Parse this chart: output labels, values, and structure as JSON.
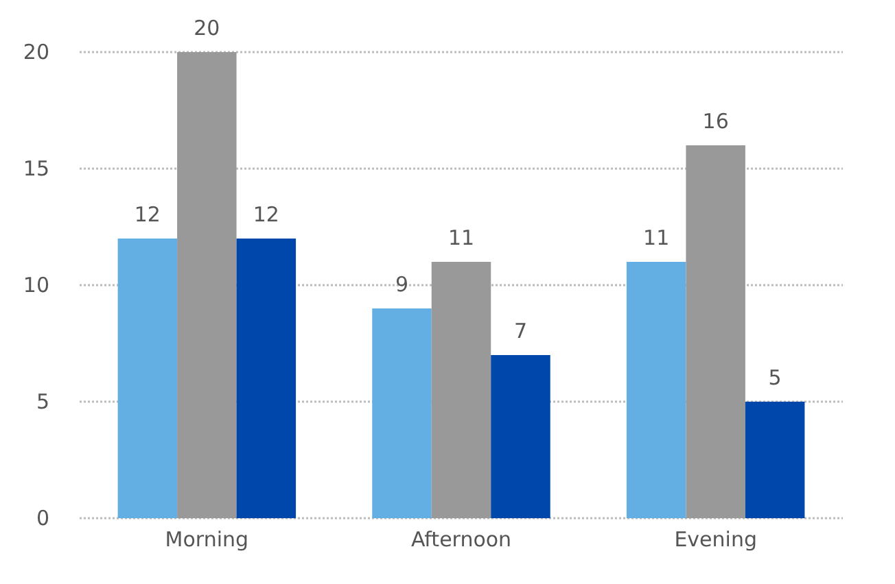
{
  "chart_data": {
    "type": "bar",
    "categories": [
      "Morning",
      "Afternoon",
      "Evening"
    ],
    "series": [
      {
        "color": "#63aee3",
        "values": [
          12,
          9,
          11
        ]
      },
      {
        "color": "#999999",
        "values": [
          20,
          11,
          16
        ]
      },
      {
        "color": "#0047ab",
        "values": [
          12,
          7,
          5
        ]
      }
    ],
    "data_labels": true,
    "ylim": [
      0,
      20
    ],
    "yticks": [
      0,
      5,
      10,
      15,
      20
    ],
    "grid": "y"
  }
}
